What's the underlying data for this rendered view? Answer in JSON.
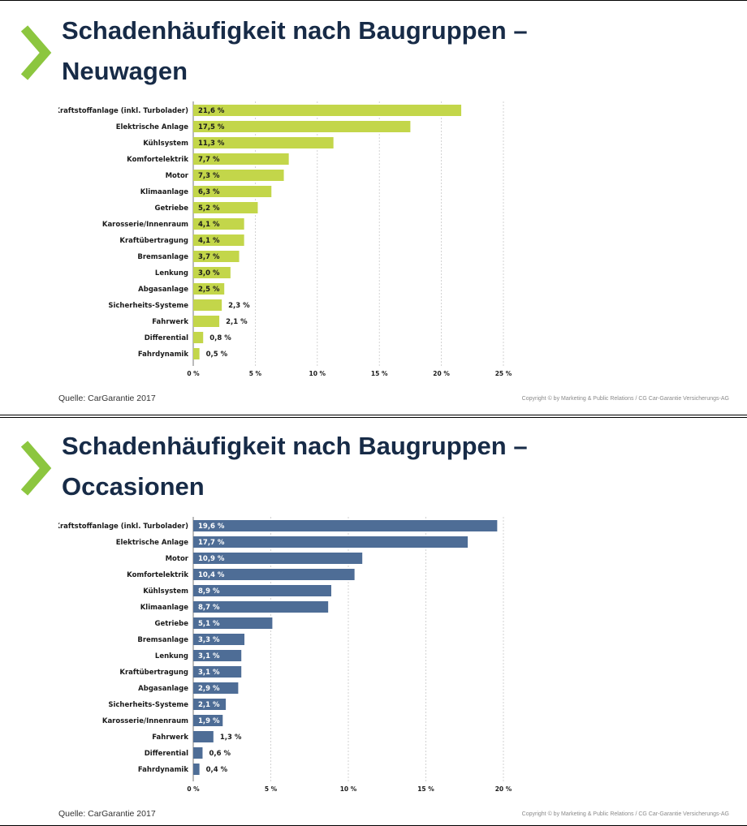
{
  "accent": "#8cc63f",
  "title_color": "#172b47",
  "slides": [
    {
      "title_line1": "Schadenhäufigkeit nach Baugruppen –",
      "title_line2": "Neuwagen",
      "source": "Quelle: CarGarantie 2017",
      "copyright": "Copyright © by Marketing & Public Relations / CG Car-Garantie Versicherungs-AG"
    },
    {
      "title_line1": "Schadenhäufigkeit nach Baugruppen –",
      "title_line2": "Occasionen",
      "source": "Quelle: CarGarantie 2017",
      "copyright": "Copyright © by Marketing & Public Relations / CG Car-Garantie Versicherungs-AG"
    }
  ],
  "chart_data": [
    {
      "type": "bar",
      "orientation": "horizontal",
      "color": "#c3d64a",
      "categories": [
        "Kraftstoffanlage (inkl. Turbolader)",
        "Elektrische Anlage",
        "Kühlsystem",
        "Komfortelektrik",
        "Motor",
        "Klimaanlage",
        "Getriebe",
        "Karosserie/Innenraum",
        "Kraftübertragung",
        "Bremsanlage",
        "Lenkung",
        "Abgasanlage",
        "Sicherheits-Systeme",
        "Fahrwerk",
        "Differential",
        "Fahrdynamik"
      ],
      "values": [
        21.6,
        17.5,
        11.3,
        7.7,
        7.3,
        6.3,
        5.2,
        4.1,
        4.1,
        3.7,
        3.0,
        2.5,
        2.3,
        2.1,
        0.8,
        0.5
      ],
      "value_labels": [
        "21,6 %",
        "17,5 %",
        "11,3 %",
        "7,7 %",
        "7,3 %",
        "6,3 %",
        "5,2 %",
        "4,1 %",
        "4,1 %",
        "3,7 %",
        "3,0 %",
        "2,5 %",
        "2,3 %",
        "2,1 %",
        "0,8 %",
        "0,5 %"
      ],
      "xlim": [
        0,
        25
      ],
      "ticks": [
        0,
        5,
        10,
        15,
        20,
        25
      ],
      "tick_labels": [
        "0 %",
        "5 %",
        "10 %",
        "15 %",
        "20 %",
        "25 %"
      ],
      "grid": true
    },
    {
      "type": "bar",
      "orientation": "horizontal",
      "color": "#4e6d96",
      "categories": [
        "Kraftstoffanlage (inkl. Turbolader)",
        "Elektrische Anlage",
        "Motor",
        "Komfortelektrik",
        "Kühlsystem",
        "Klimaanlage",
        "Getriebe",
        "Bremsanlage",
        "Lenkung",
        "Kraftübertragung",
        "Abgasanlage",
        "Sicherheits-Systeme",
        "Karosserie/Innenraum",
        "Fahrwerk",
        "Differential",
        "Fahrdynamik"
      ],
      "values": [
        19.6,
        17.7,
        10.9,
        10.4,
        8.9,
        8.7,
        5.1,
        3.3,
        3.1,
        3.1,
        2.9,
        2.1,
        1.9,
        1.3,
        0.6,
        0.4
      ],
      "value_labels": [
        "19,6 %",
        "17,7 %",
        "10,9 %",
        "10,4 %",
        "8,9 %",
        "8,7 %",
        "5,1 %",
        "3,3 %",
        "3,1 %",
        "3,1 %",
        "2,9 %",
        "2,1 %",
        "1,9 %",
        "1,3 %",
        "0,6 %",
        "0,4 %"
      ],
      "xlim": [
        0,
        20
      ],
      "ticks": [
        0,
        5,
        10,
        15,
        20
      ],
      "tick_labels": [
        "0 %",
        "5 %",
        "10 %",
        "15 %",
        "20 %"
      ],
      "grid": true
    }
  ]
}
